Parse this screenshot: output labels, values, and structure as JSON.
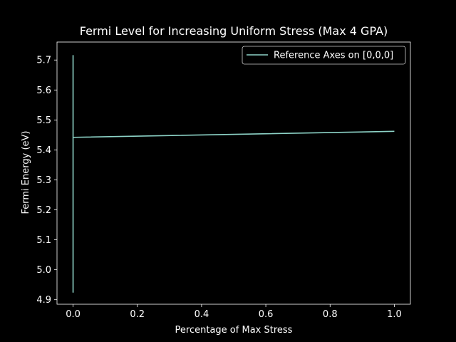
{
  "chart_data": {
    "type": "line",
    "title": "Fermi Level for Increasing Uniform Stress (Max 4 GPA)",
    "xlabel": "Percentage of Max Stress",
    "ylabel": "Fermi Energy (eV)",
    "xlim": [
      -0.05,
      1.05
    ],
    "ylim": [
      4.885,
      5.76
    ],
    "xticks": [
      0.0,
      0.2,
      0.4,
      0.6,
      0.8,
      1.0
    ],
    "xtick_labels": [
      "0.0",
      "0.2",
      "0.4",
      "0.6",
      "0.8",
      "1.0"
    ],
    "yticks": [
      4.9,
      5.0,
      5.1,
      5.2,
      5.3,
      5.4,
      5.5,
      5.6,
      5.7
    ],
    "ytick_labels": [
      "4.9",
      "5.0",
      "5.1",
      "5.2",
      "5.3",
      "5.4",
      "5.5",
      "5.6",
      "5.7"
    ],
    "grid": false,
    "legend_position": "top-right",
    "series": [
      {
        "name": "Reference Axes on [0,0,0]",
        "color": "#8dd3c7",
        "x": [
          0.0,
          0.0,
          0.0,
          0.0,
          0.0,
          0.0,
          0.0,
          0.0,
          0.001,
          0.002,
          1.0
        ],
        "y": [
          5.38,
          5.715,
          5.705,
          4.925,
          4.93,
          5.71,
          5.715,
          5.442,
          5.442,
          5.442,
          5.462
        ]
      }
    ]
  }
}
